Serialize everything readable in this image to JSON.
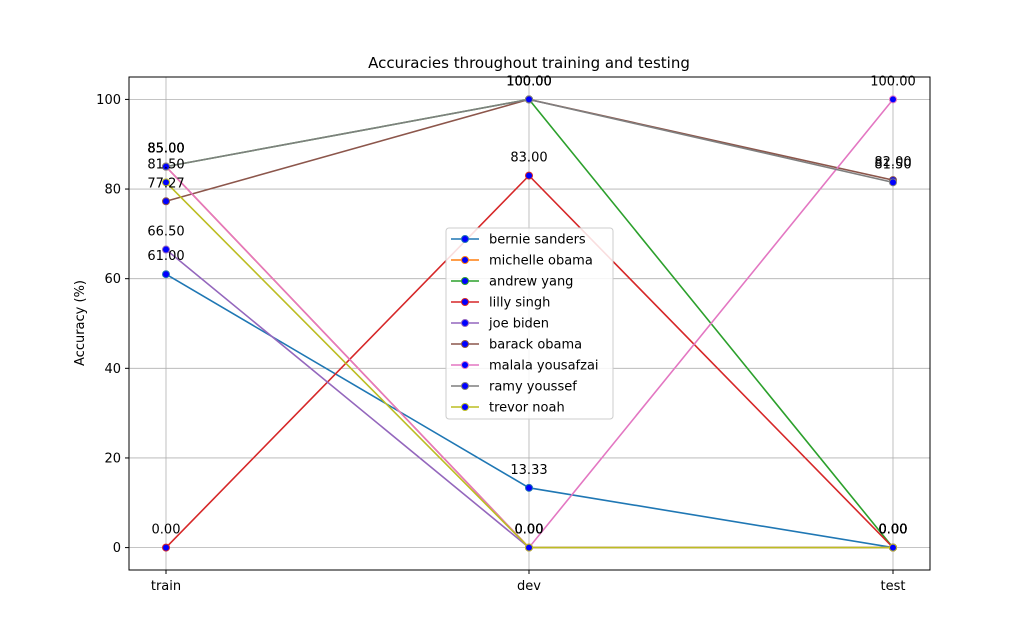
{
  "chart_data": {
    "type": "line",
    "title": "Accuracies throughout training and testing",
    "xlabel": "",
    "ylabel": "Accuracy (%)",
    "categories": [
      "train",
      "dev",
      "test"
    ],
    "ylim": [
      -5,
      105
    ],
    "yticks": [
      0,
      20,
      40,
      60,
      80,
      100
    ],
    "grid": true,
    "legend_position": "center",
    "series": [
      {
        "name": "bernie sanders",
        "color": "#1f77b4",
        "marker_color": "#0000ff",
        "values": [
          61.0,
          13.33,
          0.0
        ],
        "labels": [
          "61.00",
          "13.33",
          "0.00"
        ]
      },
      {
        "name": "michelle obama",
        "color": "#ff7f0e",
        "marker_color": "#0000ff",
        "values": [
          85.0,
          0.0,
          0.0
        ],
        "labels": [
          "85.00",
          "0.00",
          "0.00"
        ]
      },
      {
        "name": "andrew yang",
        "color": "#2ca02c",
        "marker_color": "#0000ff",
        "values": [
          85.0,
          100.0,
          0.0
        ],
        "labels": [
          "85.00",
          "100.00",
          "0.00"
        ]
      },
      {
        "name": "lilly singh",
        "color": "#d62728",
        "marker_color": "#0000ff",
        "values": [
          0.0,
          83.0,
          0.0
        ],
        "labels": [
          "0.00",
          "83.00",
          "0.00"
        ]
      },
      {
        "name": "joe biden",
        "color": "#9467bd",
        "marker_color": "#0000ff",
        "values": [
          66.5,
          0.0,
          0.0
        ],
        "labels": [
          "66.50",
          "0.00",
          "0.00"
        ]
      },
      {
        "name": "barack obama",
        "color": "#8c564b",
        "marker_color": "#0000ff",
        "values": [
          77.27,
          100.0,
          82.0
        ],
        "labels": [
          "77.27",
          "100.00",
          "82.00"
        ]
      },
      {
        "name": "malala yousafzai",
        "color": "#e377c2",
        "marker_color": "#0000ff",
        "values": [
          85.0,
          0.0,
          100.0
        ],
        "labels": [
          "85.00",
          "0.00",
          "100.00"
        ]
      },
      {
        "name": "ramy youssef",
        "color": "#7f7f7f",
        "marker_color": "#0000ff",
        "values": [
          85.0,
          100.0,
          81.5
        ],
        "labels": [
          "85.00",
          "100.00",
          "81.50"
        ]
      },
      {
        "name": "trevor noah",
        "color": "#bcbd22",
        "marker_color": "#0000ff",
        "values": [
          81.5,
          0.0,
          0.0
        ],
        "labels": [
          "81.50",
          "0.00",
          "0.00"
        ]
      }
    ]
  }
}
